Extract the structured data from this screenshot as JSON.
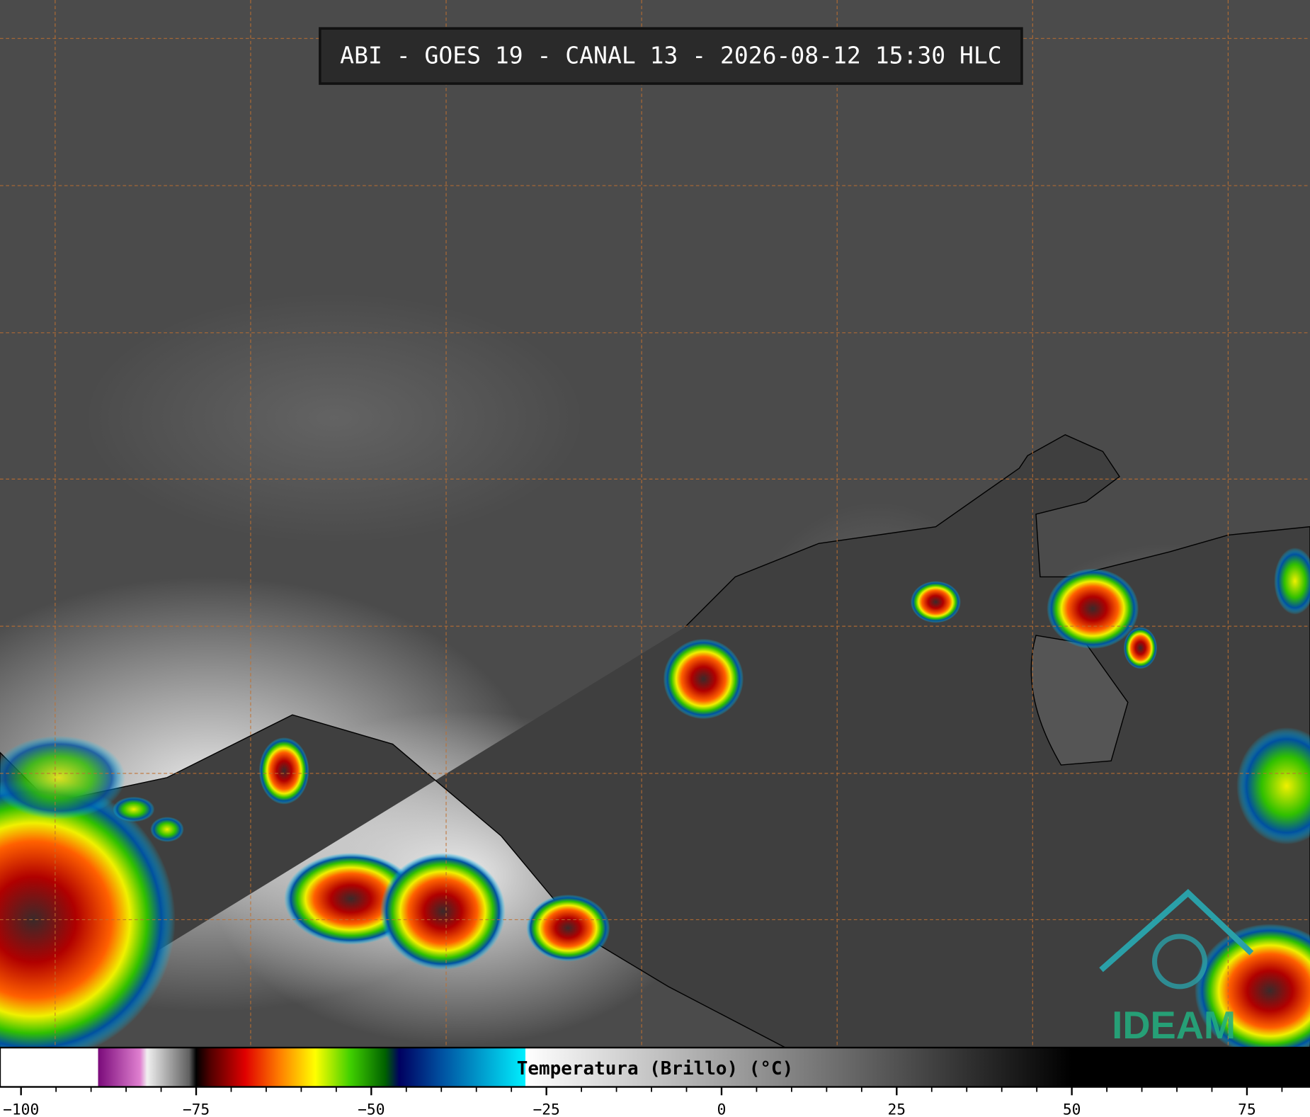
{
  "title": "ABI - GOES 19 - CANAL 13 - 2026-08-12 15:30 HLC",
  "logo": "IDEAM",
  "colorbar": {
    "label": "Temperatura (Brillo) (°C)",
    "lim": [
      -103,
      84
    ],
    "ticks": [
      {
        "value": -100,
        "label": "−100"
      },
      {
        "value": -75,
        "label": "−75"
      },
      {
        "value": -50,
        "label": "−50"
      },
      {
        "value": -25,
        "label": "−25"
      },
      0,
      25,
      50,
      75
    ],
    "minor_ticks": [
      -95,
      -90,
      -85,
      -80,
      -70,
      -65,
      -60,
      -55,
      -45,
      -40,
      -35,
      -30,
      -20,
      -15,
      -10,
      -5,
      5,
      10,
      15,
      20,
      30,
      35,
      40,
      45,
      55,
      60,
      65,
      70,
      80
    ],
    "stops": [
      [
        -103,
        "#ffffff"
      ],
      [
        -89,
        "#ffffff"
      ],
      [
        -89,
        "#7a0a7a"
      ],
      [
        -83,
        "#e080d0"
      ],
      [
        -82,
        "#f0f0f0"
      ],
      [
        -76,
        "#606060"
      ],
      [
        -75,
        "#000000"
      ],
      [
        -73,
        "#500000"
      ],
      [
        -68,
        "#e00000"
      ],
      [
        -63,
        "#ff8000"
      ],
      [
        -58,
        "#ffff00"
      ],
      [
        -53,
        "#40d000"
      ],
      [
        -48,
        "#006000"
      ],
      [
        -46,
        "#000060"
      ],
      [
        -40,
        "#0050a0"
      ],
      [
        -28,
        "#00f0ff"
      ],
      [
        -28,
        "#ffffff"
      ],
      [
        50,
        "#000000"
      ],
      [
        84,
        "#000000"
      ]
    ]
  }
}
